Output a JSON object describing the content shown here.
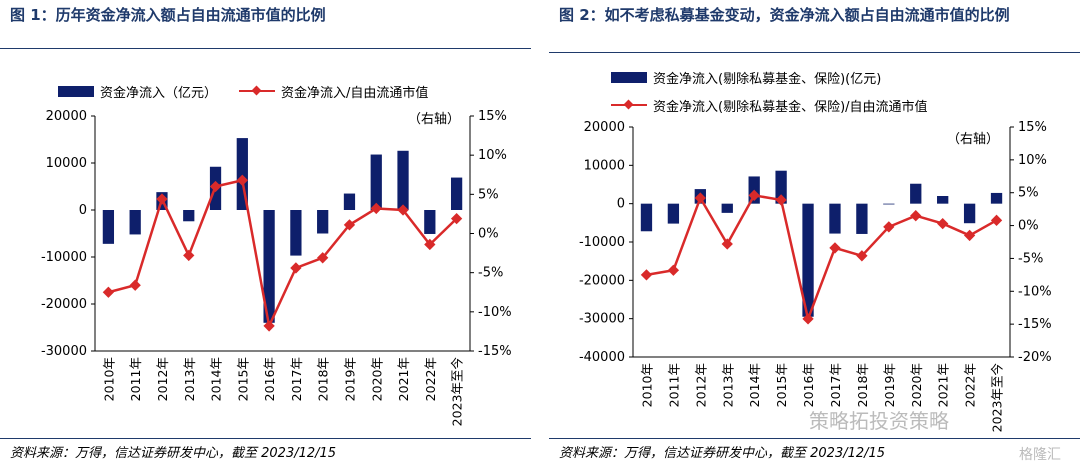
{
  "colors": {
    "bar": "#0e1f6b",
    "line": "#d92a2a",
    "title": "#1f3a6b",
    "rule": "#1f3a6b"
  },
  "panels": [
    {
      "title": "图 1：历年资金净流入额占自由流通市值的比例",
      "legend_bar": "资金净流入（亿元）",
      "legend_line": "资金净流入/自由流通市值",
      "right_axis_note": "（右轴）",
      "source": "资料来源：万得，信达证券研发中心，截至 2023/12/15"
    },
    {
      "title": "图 2：如不考虑私募基金变动，资金净流入额占自由流通市值的比例",
      "legend_bar": "资金净流入(剔除私募基金、保险)(亿元)",
      "legend_line": "资金净流入(剔除私募基金、保险)/自由流通市值",
      "right_axis_note": "（右轴）",
      "source": "资料来源：万得，信达证券研发中心，截至 2023/12/15"
    }
  ],
  "watermark": {
    "text1": "策略拓投资策略",
    "text2": "格隆汇"
  },
  "chart_data": [
    {
      "type": "bar",
      "categories": [
        "2010年",
        "2011年",
        "2012年",
        "2013年",
        "2014年",
        "2015年",
        "2016年",
        "2017年",
        "2018年",
        "2019年",
        "2020年",
        "2021年",
        "2022年",
        "2023年至今"
      ],
      "series": [
        {
          "name": "资金净流入（亿元）",
          "axis": "left",
          "values": [
            -7200,
            -5200,
            3800,
            -2400,
            9200,
            15300,
            -24000,
            -9700,
            -5000,
            3500,
            11800,
            12600,
            -5100,
            6900
          ]
        },
        {
          "name": "资金净流入/自由流通市值",
          "axis": "right",
          "type": "line",
          "values": [
            -7.5,
            -6.6,
            4.4,
            -2.8,
            6.0,
            6.8,
            -11.8,
            -4.4,
            -3.1,
            1.1,
            3.2,
            3.0,
            -1.4,
            1.9
          ]
        }
      ],
      "ylim": [
        -30000,
        20000
      ],
      "yticks": [
        -30000,
        -20000,
        -10000,
        0,
        10000,
        20000
      ],
      "y2lim": [
        -15,
        15
      ],
      "y2ticks": [
        -15,
        -10,
        -5,
        0,
        5,
        10,
        15
      ],
      "ytick_labels": [
        "-30000",
        "-20000",
        "-10000",
        "0",
        "10000",
        "20000"
      ],
      "y2tick_labels": [
        "-15%",
        "-10%",
        "-5%",
        "0%",
        "5%",
        "10%",
        "15%"
      ],
      "legend": "top"
    },
    {
      "type": "bar",
      "categories": [
        "2010年",
        "2011年",
        "2012年",
        "2013年",
        "2014年",
        "2015年",
        "2016年",
        "2017年",
        "2018年",
        "2019年",
        "2020年",
        "2021年",
        "2022年",
        "2023年至今"
      ],
      "series": [
        {
          "name": "资金净流入(剔除私募基金、保险)(亿元)",
          "axis": "left",
          "values": [
            -7200,
            -5200,
            3800,
            -2400,
            7100,
            8600,
            -29500,
            -7800,
            -7900,
            -200,
            5200,
            2000,
            -5100,
            2800
          ]
        },
        {
          "name": "资金净流入(剔除私募基金、保险)/自由流通市值",
          "axis": "right",
          "type": "line",
          "values": [
            -7.5,
            -6.8,
            4.2,
            -2.8,
            4.6,
            3.9,
            -14.2,
            -3.4,
            -4.6,
            -0.2,
            1.5,
            0.3,
            -1.5,
            0.8
          ]
        }
      ],
      "ylim": [
        -40000,
        20000
      ],
      "yticks": [
        -40000,
        -30000,
        -20000,
        -10000,
        0,
        10000,
        20000
      ],
      "y2lim": [
        -20,
        15
      ],
      "y2ticks": [
        -20,
        -15,
        -10,
        -5,
        0,
        5,
        10,
        15
      ],
      "ytick_labels": [
        "-40000",
        "-30000",
        "-20000",
        "-10000",
        "0",
        "10000",
        "20000"
      ],
      "y2tick_labels": [
        "-20%",
        "-15%",
        "-10%",
        "-5%",
        "0%",
        "5%",
        "10%",
        "15%"
      ],
      "legend": "top"
    }
  ]
}
